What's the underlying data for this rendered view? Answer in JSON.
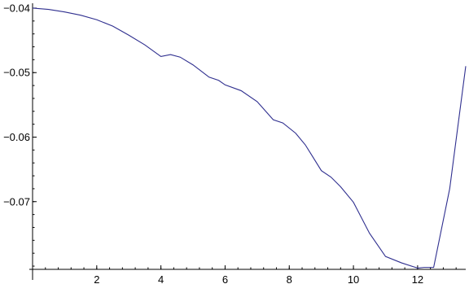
{
  "chart_data": {
    "type": "line",
    "title": "",
    "xlabel": "",
    "ylabel": "",
    "xlim": [
      0,
      13.5
    ],
    "ylim": [
      -0.0805,
      -0.0395
    ],
    "x_ticks": [
      {
        "value": 2,
        "label": "2"
      },
      {
        "value": 4,
        "label": "4"
      },
      {
        "value": 6,
        "label": "6"
      },
      {
        "value": 8,
        "label": "8"
      },
      {
        "value": 10,
        "label": "10"
      },
      {
        "value": 12,
        "label": "12"
      }
    ],
    "x_minor_step": 0.4,
    "y_ticks": [
      {
        "value": -0.04,
        "label": "−0.04"
      },
      {
        "value": -0.05,
        "label": "−0.05"
      },
      {
        "value": -0.06,
        "label": "−0.06"
      },
      {
        "value": -0.07,
        "label": "−0.07"
      }
    ],
    "y_minor_step": 0.002,
    "grid": false,
    "line_color": "#2f2f8f",
    "series": [
      {
        "x": [
          0,
          0.5,
          1.0,
          1.5,
          2.0,
          2.5,
          3.0,
          3.5,
          4.0,
          4.3,
          4.6,
          5.0,
          5.5,
          5.8,
          6.0,
          6.5,
          7.0,
          7.5,
          7.8,
          8.2,
          8.5,
          9.0,
          9.3,
          9.6,
          10.0,
          10.5,
          11.0,
          11.5,
          12.0,
          12.2,
          12.5,
          13.0,
          13.5
        ],
        "y": [
          -0.04,
          -0.0402,
          -0.0406,
          -0.0411,
          -0.0418,
          -0.0428,
          -0.0442,
          -0.0457,
          -0.0475,
          -0.0472,
          -0.0476,
          -0.0488,
          -0.0507,
          -0.0512,
          -0.0519,
          -0.0528,
          -0.0545,
          -0.0573,
          -0.0578,
          -0.0594,
          -0.0612,
          -0.0652,
          -0.0662,
          -0.0677,
          -0.0701,
          -0.0749,
          -0.0785,
          -0.0795,
          -0.0803,
          -0.0802,
          -0.0802,
          -0.068,
          -0.049
        ]
      }
    ]
  }
}
